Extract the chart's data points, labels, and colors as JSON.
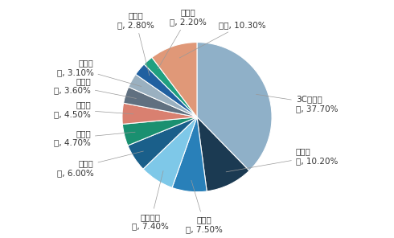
{
  "values": [
    37.7,
    10.2,
    7.5,
    7.4,
    6.0,
    4.7,
    4.5,
    3.6,
    3.1,
    2.8,
    2.2,
    10.3
  ],
  "colors": [
    "#8fb0c8",
    "#1b3a52",
    "#2980b9",
    "#7ec8e8",
    "#1a5f8a",
    "#1a9070",
    "#d98070",
    "#607080",
    "#9ab0c0",
    "#2060a0",
    "#20a080",
    "#e09878"
  ],
  "label_texts": [
    "3C电子产\n品, 37.70%",
    "服装配\n饰, 10.20%",
    "户外用\n品, 7.50%",
    "健康与美\n容, 7.40%",
    "珠宝首\n饰, 6.00%",
    "家居园\n艺, 4.70%",
    "鞋帽箱\n包, 4.50%",
    "母婴玩\n具, 3.60%",
    "汽车配\n件, 3.10%",
    "灯光照\n明, 2.80%",
    "安全监\n控, 2.20%",
    "其他, 10.30%"
  ],
  "label_xy": [
    [
      1.32,
      0.18,
      "left",
      "center"
    ],
    [
      1.32,
      -0.52,
      "left",
      "center"
    ],
    [
      0.1,
      -1.32,
      "center",
      "top"
    ],
    [
      -0.62,
      -1.28,
      "center",
      "top"
    ],
    [
      -1.38,
      -0.68,
      "right",
      "center"
    ],
    [
      -1.42,
      -0.28,
      "right",
      "center"
    ],
    [
      -1.42,
      0.1,
      "right",
      "center"
    ],
    [
      -1.42,
      0.42,
      "right",
      "center"
    ],
    [
      -1.38,
      0.66,
      "right",
      "center"
    ],
    [
      -0.82,
      1.18,
      "center",
      "bottom"
    ],
    [
      -0.12,
      1.22,
      "center",
      "bottom"
    ],
    [
      0.6,
      1.18,
      "center",
      "bottom"
    ]
  ],
  "startangle": 90,
  "counterclock": false,
  "background_color": "#ffffff",
  "edge_color": "white",
  "edge_width": 0.8,
  "fontsize": 7.5
}
